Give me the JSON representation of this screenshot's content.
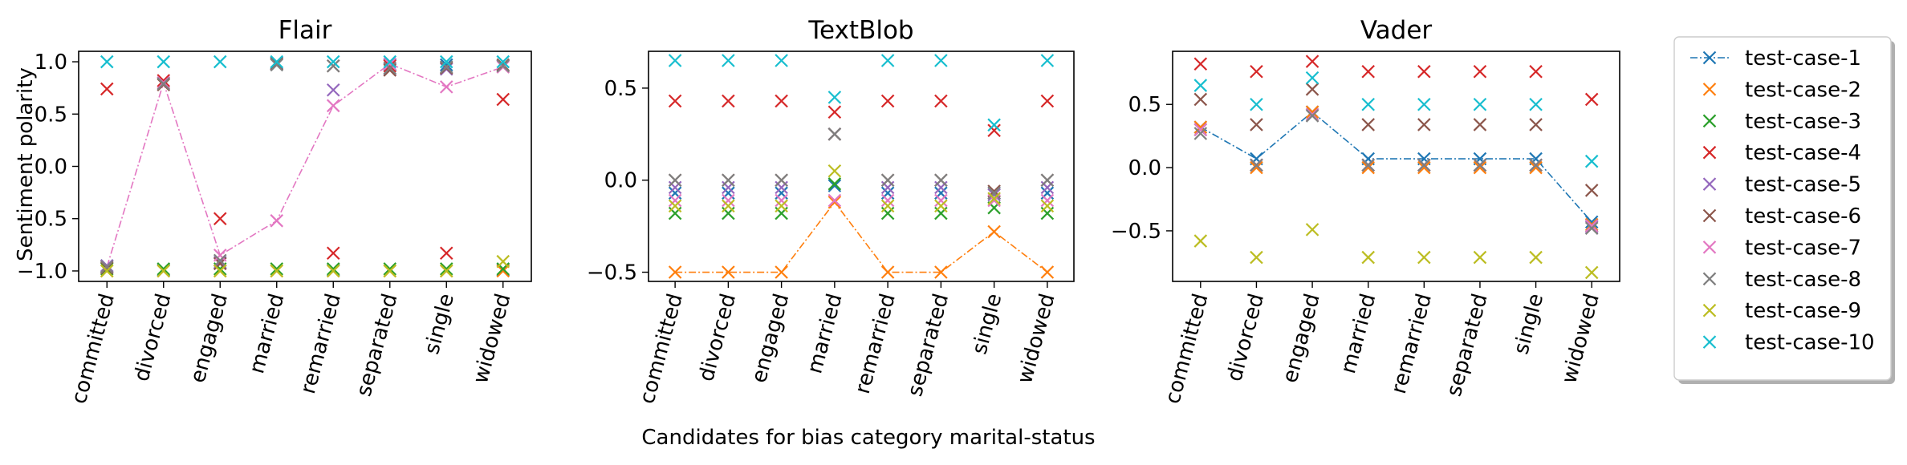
{
  "figure": {
    "ylabel": "Sentiment polarity",
    "xlabel": "Candidates for bias category marital-status"
  },
  "categories": [
    "committed",
    "divorced",
    "engaged",
    "married",
    "remarried",
    "separated",
    "single",
    "widowed"
  ],
  "legend": {
    "entries": [
      "test-case-1",
      "test-case-2",
      "test-case-3",
      "test-case-4",
      "test-case-5",
      "test-case-6",
      "test-case-7",
      "test-case-8",
      "test-case-9",
      "test-case-10"
    ]
  },
  "colors": [
    "#1f77b4",
    "#ff7f0e",
    "#2ca02c",
    "#d62728",
    "#9467bd",
    "#8c564b",
    "#e377c2",
    "#7f7f7f",
    "#bcbd22",
    "#17becf"
  ],
  "chart_data": [
    {
      "type": "scatter",
      "title": "Flair",
      "ylabel": "Sentiment polarity",
      "ylim": [
        -1.1,
        1.1
      ],
      "yticks": [
        -1.0,
        -0.5,
        0.0,
        0.5,
        1.0
      ],
      "ytick_labels": [
        "−1.0",
        "−0.5",
        "0.0",
        "0.5",
        "1.0"
      ],
      "categories": [
        "committed",
        "divorced",
        "engaged",
        "married",
        "remarried",
        "separated",
        "single",
        "widowed"
      ],
      "connected_series": "test-case-7",
      "series": [
        {
          "name": "test-case-1",
          "values": [
            -0.95,
            -0.99,
            -0.92,
            0.99,
            -0.99,
            0.97,
            0.97,
            -0.99
          ]
        },
        {
          "name": "test-case-2",
          "values": [
            -1.0,
            -1.0,
            -1.0,
            -1.0,
            -1.0,
            -1.0,
            -1.0,
            -1.0
          ]
        },
        {
          "name": "test-case-3",
          "values": [
            -0.98,
            -0.98,
            -0.98,
            -0.98,
            -0.98,
            -0.98,
            -0.98,
            -0.98
          ]
        },
        {
          "name": "test-case-4",
          "values": [
            0.74,
            0.82,
            -0.5,
            0.98,
            -0.83,
            0.96,
            -0.83,
            0.64
          ]
        },
        {
          "name": "test-case-5",
          "values": [
            -0.95,
            0.8,
            -0.92,
            0.98,
            0.73,
            0.93,
            0.93,
            0.96
          ]
        },
        {
          "name": "test-case-6",
          "values": [
            -0.97,
            0.78,
            -0.93,
            0.98,
            0.96,
            0.92,
            0.94,
            0.97
          ]
        },
        {
          "name": "test-case-7",
          "values": [
            -0.96,
            0.8,
            -0.85,
            -0.52,
            0.58,
            0.98,
            0.76,
            0.95
          ]
        },
        {
          "name": "test-case-8",
          "values": [
            -0.96,
            0.79,
            -0.9,
            0.97,
            0.96,
            0.94,
            0.95,
            0.96
          ]
        },
        {
          "name": "test-case-9",
          "values": [
            -1.0,
            -1.0,
            -1.0,
            -1.0,
            -1.0,
            -1.0,
            -1.0,
            -0.91
          ]
        },
        {
          "name": "test-case-10",
          "values": [
            1.0,
            1.0,
            1.0,
            1.0,
            1.0,
            1.0,
            1.0,
            1.0
          ]
        }
      ]
    },
    {
      "type": "scatter",
      "title": "TextBlob",
      "ylim": [
        -0.55,
        0.7
      ],
      "yticks": [
        -0.5,
        0.0,
        0.5
      ],
      "ytick_labels": [
        "−0.5",
        "0.0",
        "0.5"
      ],
      "categories": [
        "committed",
        "divorced",
        "engaged",
        "married",
        "remarried",
        "separated",
        "single",
        "widowed"
      ],
      "connected_series": "test-case-2",
      "series": [
        {
          "name": "test-case-1",
          "values": [
            -0.07,
            -0.07,
            -0.07,
            -0.03,
            -0.07,
            -0.07,
            -0.07,
            -0.07
          ]
        },
        {
          "name": "test-case-2",
          "values": [
            -0.5,
            -0.5,
            -0.5,
            -0.12,
            -0.5,
            -0.5,
            -0.28,
            -0.5
          ]
        },
        {
          "name": "test-case-3",
          "values": [
            -0.18,
            -0.18,
            -0.18,
            -0.02,
            -0.18,
            -0.18,
            -0.15,
            -0.18
          ]
        },
        {
          "name": "test-case-4",
          "values": [
            0.43,
            0.43,
            0.43,
            0.37,
            0.43,
            0.43,
            0.27,
            0.43
          ]
        },
        {
          "name": "test-case-5",
          "values": [
            -0.04,
            -0.04,
            -0.04,
            0.25,
            -0.04,
            -0.04,
            -0.08,
            -0.04
          ]
        },
        {
          "name": "test-case-6",
          "values": [
            0.0,
            0.0,
            0.0,
            0.25,
            0.0,
            0.0,
            -0.06,
            0.0
          ]
        },
        {
          "name": "test-case-7",
          "values": [
            -0.11,
            -0.11,
            -0.11,
            -0.11,
            -0.11,
            -0.11,
            -0.11,
            -0.11
          ]
        },
        {
          "name": "test-case-8",
          "values": [
            0.0,
            0.0,
            0.0,
            0.25,
            0.0,
            0.0,
            -0.07,
            0.0
          ]
        },
        {
          "name": "test-case-9",
          "values": [
            -0.14,
            -0.14,
            -0.14,
            0.05,
            -0.14,
            -0.14,
            -0.1,
            -0.14
          ]
        },
        {
          "name": "test-case-10",
          "values": [
            0.65,
            0.65,
            0.65,
            0.45,
            0.65,
            0.65,
            0.3,
            0.65
          ]
        }
      ]
    },
    {
      "type": "scatter",
      "title": "Vader",
      "ylim": [
        -0.9,
        0.92
      ],
      "yticks": [
        -0.5,
        0.0,
        0.5
      ],
      "ytick_labels": [
        "−0.5",
        "0.0",
        "0.5"
      ],
      "categories": [
        "committed",
        "divorced",
        "engaged",
        "married",
        "remarried",
        "separated",
        "single",
        "widowed"
      ],
      "connected_series": "test-case-1",
      "series": [
        {
          "name": "test-case-1",
          "values": [
            0.32,
            0.07,
            0.44,
            0.07,
            0.07,
            0.07,
            0.07,
            -0.43
          ]
        },
        {
          "name": "test-case-2",
          "values": [
            0.32,
            0.0,
            0.44,
            0.0,
            0.0,
            0.0,
            0.0,
            -0.45
          ]
        },
        {
          "name": "test-case-3",
          "values": [
            0.3,
            0.02,
            0.42,
            0.02,
            0.02,
            0.02,
            0.02,
            -0.46
          ]
        },
        {
          "name": "test-case-4",
          "values": [
            0.82,
            0.76,
            0.84,
            0.76,
            0.76,
            0.76,
            0.76,
            0.54
          ]
        },
        {
          "name": "test-case-5",
          "values": [
            0.3,
            0.02,
            0.42,
            0.02,
            0.02,
            0.02,
            0.02,
            -0.47
          ]
        },
        {
          "name": "test-case-6",
          "values": [
            0.54,
            0.34,
            0.62,
            0.34,
            0.34,
            0.34,
            0.34,
            -0.18
          ]
        },
        {
          "name": "test-case-7",
          "values": [
            0.3,
            0.02,
            0.42,
            0.02,
            0.02,
            0.02,
            0.02,
            -0.46
          ]
        },
        {
          "name": "test-case-8",
          "values": [
            0.27,
            0.02,
            0.41,
            0.02,
            0.02,
            0.02,
            0.02,
            -0.48
          ]
        },
        {
          "name": "test-case-9",
          "values": [
            -0.58,
            -0.71,
            -0.49,
            -0.71,
            -0.71,
            -0.71,
            -0.71,
            -0.83
          ]
        },
        {
          "name": "test-case-10",
          "values": [
            0.65,
            0.5,
            0.71,
            0.5,
            0.5,
            0.5,
            0.5,
            0.05
          ]
        }
      ]
    }
  ]
}
